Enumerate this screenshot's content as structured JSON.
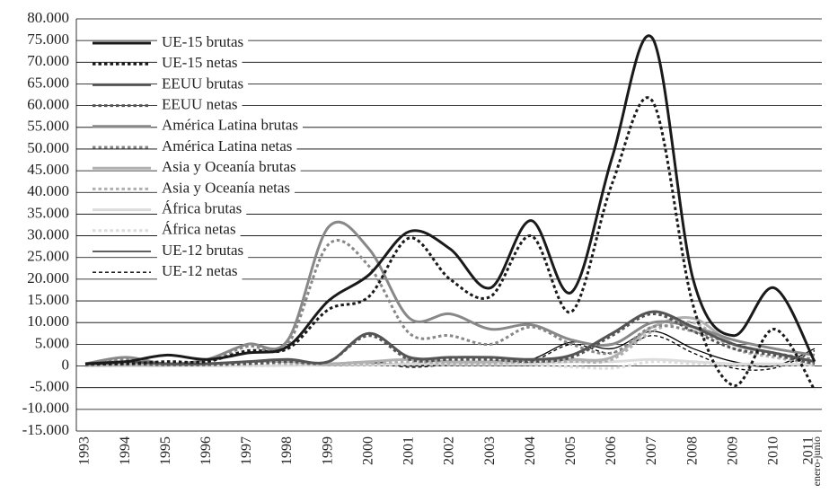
{
  "chart_data": {
    "type": "line",
    "categories": [
      "1993",
      "1994",
      "1995",
      "1996",
      "1997",
      "1998",
      "1999",
      "2000",
      "2001",
      "2002",
      "2003",
      "2004",
      "2005",
      "2006",
      "2007",
      "2008",
      "2009",
      "2010",
      "2011 enero-junio"
    ],
    "series": [
      {
        "name": "UE-15 brutas",
        "color": "#1a1a1a",
        "dashed": false,
        "line_width": 3,
        "values": [
          500,
          1000,
          2500,
          1500,
          3000,
          4500,
          15000,
          21000,
          31000,
          27000,
          18000,
          33500,
          17000,
          48000,
          75500,
          20000,
          7000,
          18000,
          1000
        ]
      },
      {
        "name": "UE-15 netas",
        "color": "#1a1a1a",
        "dashed": true,
        "line_width": 3,
        "values": [
          500,
          500,
          1000,
          1000,
          3500,
          4000,
          13000,
          16000,
          29500,
          20000,
          16000,
          30000,
          12500,
          42000,
          61000,
          14000,
          -4500,
          8500,
          -5500
        ]
      },
      {
        "name": "EEUU brutas",
        "color": "#555555",
        "dashed": false,
        "line_width": 3,
        "values": [
          500,
          1000,
          500,
          500,
          1000,
          1500,
          1000,
          7500,
          2000,
          2000,
          2000,
          1500,
          2500,
          7500,
          12500,
          9000,
          5000,
          3000,
          1000
        ]
      },
      {
        "name": "EEUU netas",
        "color": "#555555",
        "dashed": true,
        "line_width": 3,
        "values": [
          300,
          500,
          300,
          300,
          500,
          1000,
          1000,
          7000,
          1500,
          1500,
          1500,
          1000,
          2000,
          7000,
          12000,
          8000,
          4000,
          2500,
          500
        ]
      },
      {
        "name": "América Latina brutas",
        "color": "#888888",
        "dashed": false,
        "line_width": 3,
        "values": [
          500,
          2000,
          500,
          1500,
          5000,
          6000,
          32000,
          27000,
          11000,
          12000,
          8500,
          9500,
          6000,
          5000,
          10000,
          9000,
          6000,
          4000,
          2500
        ]
      },
      {
        "name": "América Latina netas",
        "color": "#888888",
        "dashed": true,
        "line_width": 3,
        "values": [
          500,
          1500,
          500,
          1000,
          4500,
          5000,
          28000,
          23000,
          7500,
          7000,
          5000,
          9000,
          5000,
          3000,
          9000,
          8000,
          5000,
          3000,
          1500
        ]
      },
      {
        "name": "Asia y Oceanía brutas",
        "color": "#b0b0b0",
        "dashed": false,
        "line_width": 3,
        "values": [
          200,
          300,
          300,
          500,
          1000,
          1000,
          500,
          1000,
          1500,
          1000,
          1000,
          1500,
          1500,
          2000,
          9000,
          11000,
          5000,
          3000,
          1000
        ]
      },
      {
        "name": "Asia y Oceanía netas",
        "color": "#b0b0b0",
        "dashed": true,
        "line_width": 3,
        "values": [
          100,
          200,
          200,
          300,
          500,
          500,
          300,
          500,
          1000,
          500,
          500,
          1000,
          1000,
          1500,
          8000,
          10000,
          4000,
          2000,
          500
        ]
      },
      {
        "name": "África brutas",
        "color": "#dcdcdc",
        "dashed": false,
        "line_width": 3,
        "values": [
          0,
          0,
          0,
          0,
          100,
          100,
          300,
          300,
          500,
          500,
          500,
          500,
          1000,
          1000,
          1500,
          1000,
          500,
          500,
          300
        ]
      },
      {
        "name": "África netas",
        "color": "#dcdcdc",
        "dashed": true,
        "line_width": 3,
        "values": [
          0,
          0,
          0,
          0,
          0,
          100,
          200,
          200,
          300,
          300,
          300,
          300,
          -200,
          -500,
          1000,
          500,
          300,
          300,
          200
        ]
      },
      {
        "name": "UE-12 brutas",
        "color": "#000000",
        "dashed": false,
        "line_width": 1.3,
        "values": [
          0,
          0,
          0,
          0,
          0,
          0,
          500,
          1000,
          0,
          500,
          1000,
          1500,
          5500,
          4000,
          8000,
          4000,
          1000,
          0,
          4000
        ]
      },
      {
        "name": "UE-12 netas",
        "color": "#000000",
        "dashed": true,
        "line_width": 1.3,
        "values": [
          0,
          0,
          0,
          0,
          0,
          0,
          300,
          800,
          -300,
          300,
          500,
          1000,
          5000,
          3000,
          7000,
          3000,
          -500,
          -500,
          3500
        ]
      }
    ],
    "ylim": [
      -15000,
      80000
    ],
    "yticks": [
      {
        "value": -15000,
        "label": "-15.000"
      },
      {
        "value": -10000,
        "label": "-10.000"
      },
      {
        "value": -5000,
        "label": "-5.000"
      },
      0,
      {
        "value": 5000,
        "label": "5.000"
      },
      {
        "value": 10000,
        "label": "10.000"
      },
      {
        "value": 15000,
        "label": "15.000"
      },
      {
        "value": 20000,
        "label": "20.000"
      },
      {
        "value": 25000,
        "label": "25.000"
      },
      {
        "value": 30000,
        "label": "30.000"
      },
      {
        "value": 35000,
        "label": "35.000"
      },
      {
        "value": 40000,
        "label": "40.000"
      },
      {
        "value": 45000,
        "label": "45.000"
      },
      {
        "value": 50000,
        "label": "50.000"
      },
      {
        "value": 55000,
        "label": "55.000"
      },
      {
        "value": 60000,
        "label": "60.000"
      },
      {
        "value": 65000,
        "label": "65.000"
      },
      {
        "value": 70000,
        "label": "70.000"
      },
      {
        "value": 75000,
        "label": "75.000"
      },
      {
        "value": 80000,
        "label": "80.000"
      }
    ],
    "grid": true,
    "legend": "top-left"
  }
}
